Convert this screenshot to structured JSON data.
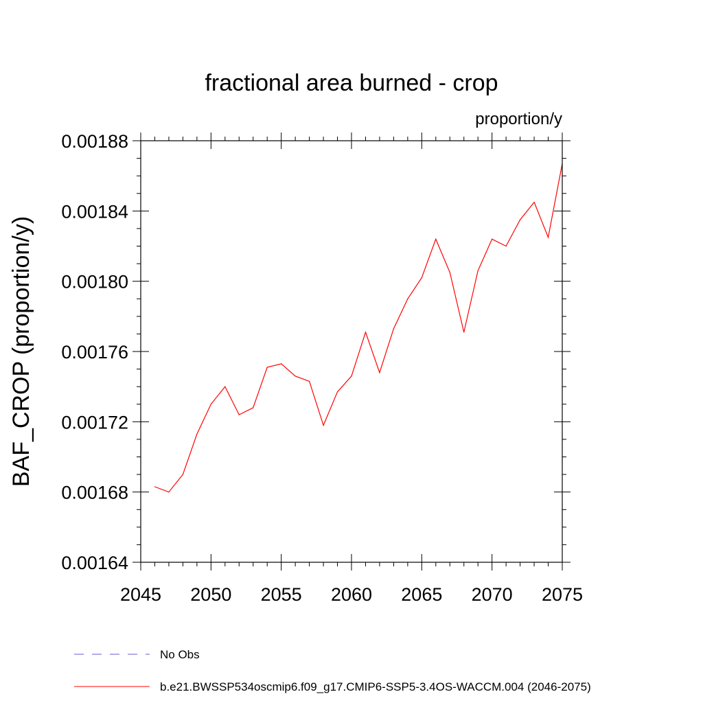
{
  "chart_data": {
    "type": "line",
    "title": "fractional area burned - crop",
    "units_label": "proportion/y",
    "xlabel": "",
    "ylabel": "BAF_CROP  (proportion/y)",
    "xlim": [
      2045,
      2075
    ],
    "ylim": [
      0.00164,
      0.00188
    ],
    "x_ticks": [
      2045,
      2050,
      2055,
      2060,
      2065,
      2070,
      2075
    ],
    "x_tick_labels": [
      "2045",
      "2050",
      "2055",
      "2060",
      "2065",
      "2070",
      "2075"
    ],
    "y_ticks": [
      0.00164,
      0.00168,
      0.00172,
      0.00176,
      0.0018,
      0.00184,
      0.00188
    ],
    "y_tick_labels": [
      "0.00164",
      "0.00168",
      "0.00172",
      "0.00176",
      "0.00180",
      "0.00184",
      "0.00188"
    ],
    "series": [
      {
        "name": "b.e21.BWSSP534oscmip6.f09_g17.CMIP6-SSP5-3.4OS-WACCM.004 (2046-2075)",
        "color": "#ff0000",
        "x": [
          2046,
          2047,
          2048,
          2049,
          2050,
          2051,
          2052,
          2053,
          2054,
          2055,
          2056,
          2057,
          2058,
          2059,
          2060,
          2061,
          2062,
          2063,
          2064,
          2065,
          2066,
          2067,
          2068,
          2069,
          2070,
          2071,
          2072,
          2073,
          2074,
          2075
        ],
        "y": [
          0.001683,
          0.00168,
          0.00169,
          0.001713,
          0.00173,
          0.00174,
          0.001724,
          0.001728,
          0.001751,
          0.001753,
          0.001746,
          0.001743,
          0.001718,
          0.001737,
          0.001746,
          0.001771,
          0.001748,
          0.001773,
          0.00179,
          0.001802,
          0.001824,
          0.001805,
          0.001771,
          0.001806,
          0.001824,
          0.00182,
          0.001835,
          0.001845,
          0.001825,
          0.001867
        ]
      }
    ],
    "legend": [
      {
        "label": "No Obs",
        "color": "#6a5acd",
        "style": "dashed"
      },
      {
        "label": "b.e21.BWSSP534oscmip6.f09_g17.CMIP6-SSP5-3.4OS-WACCM.004 (2046-2075)",
        "color": "#ff0000",
        "style": "solid"
      }
    ]
  }
}
